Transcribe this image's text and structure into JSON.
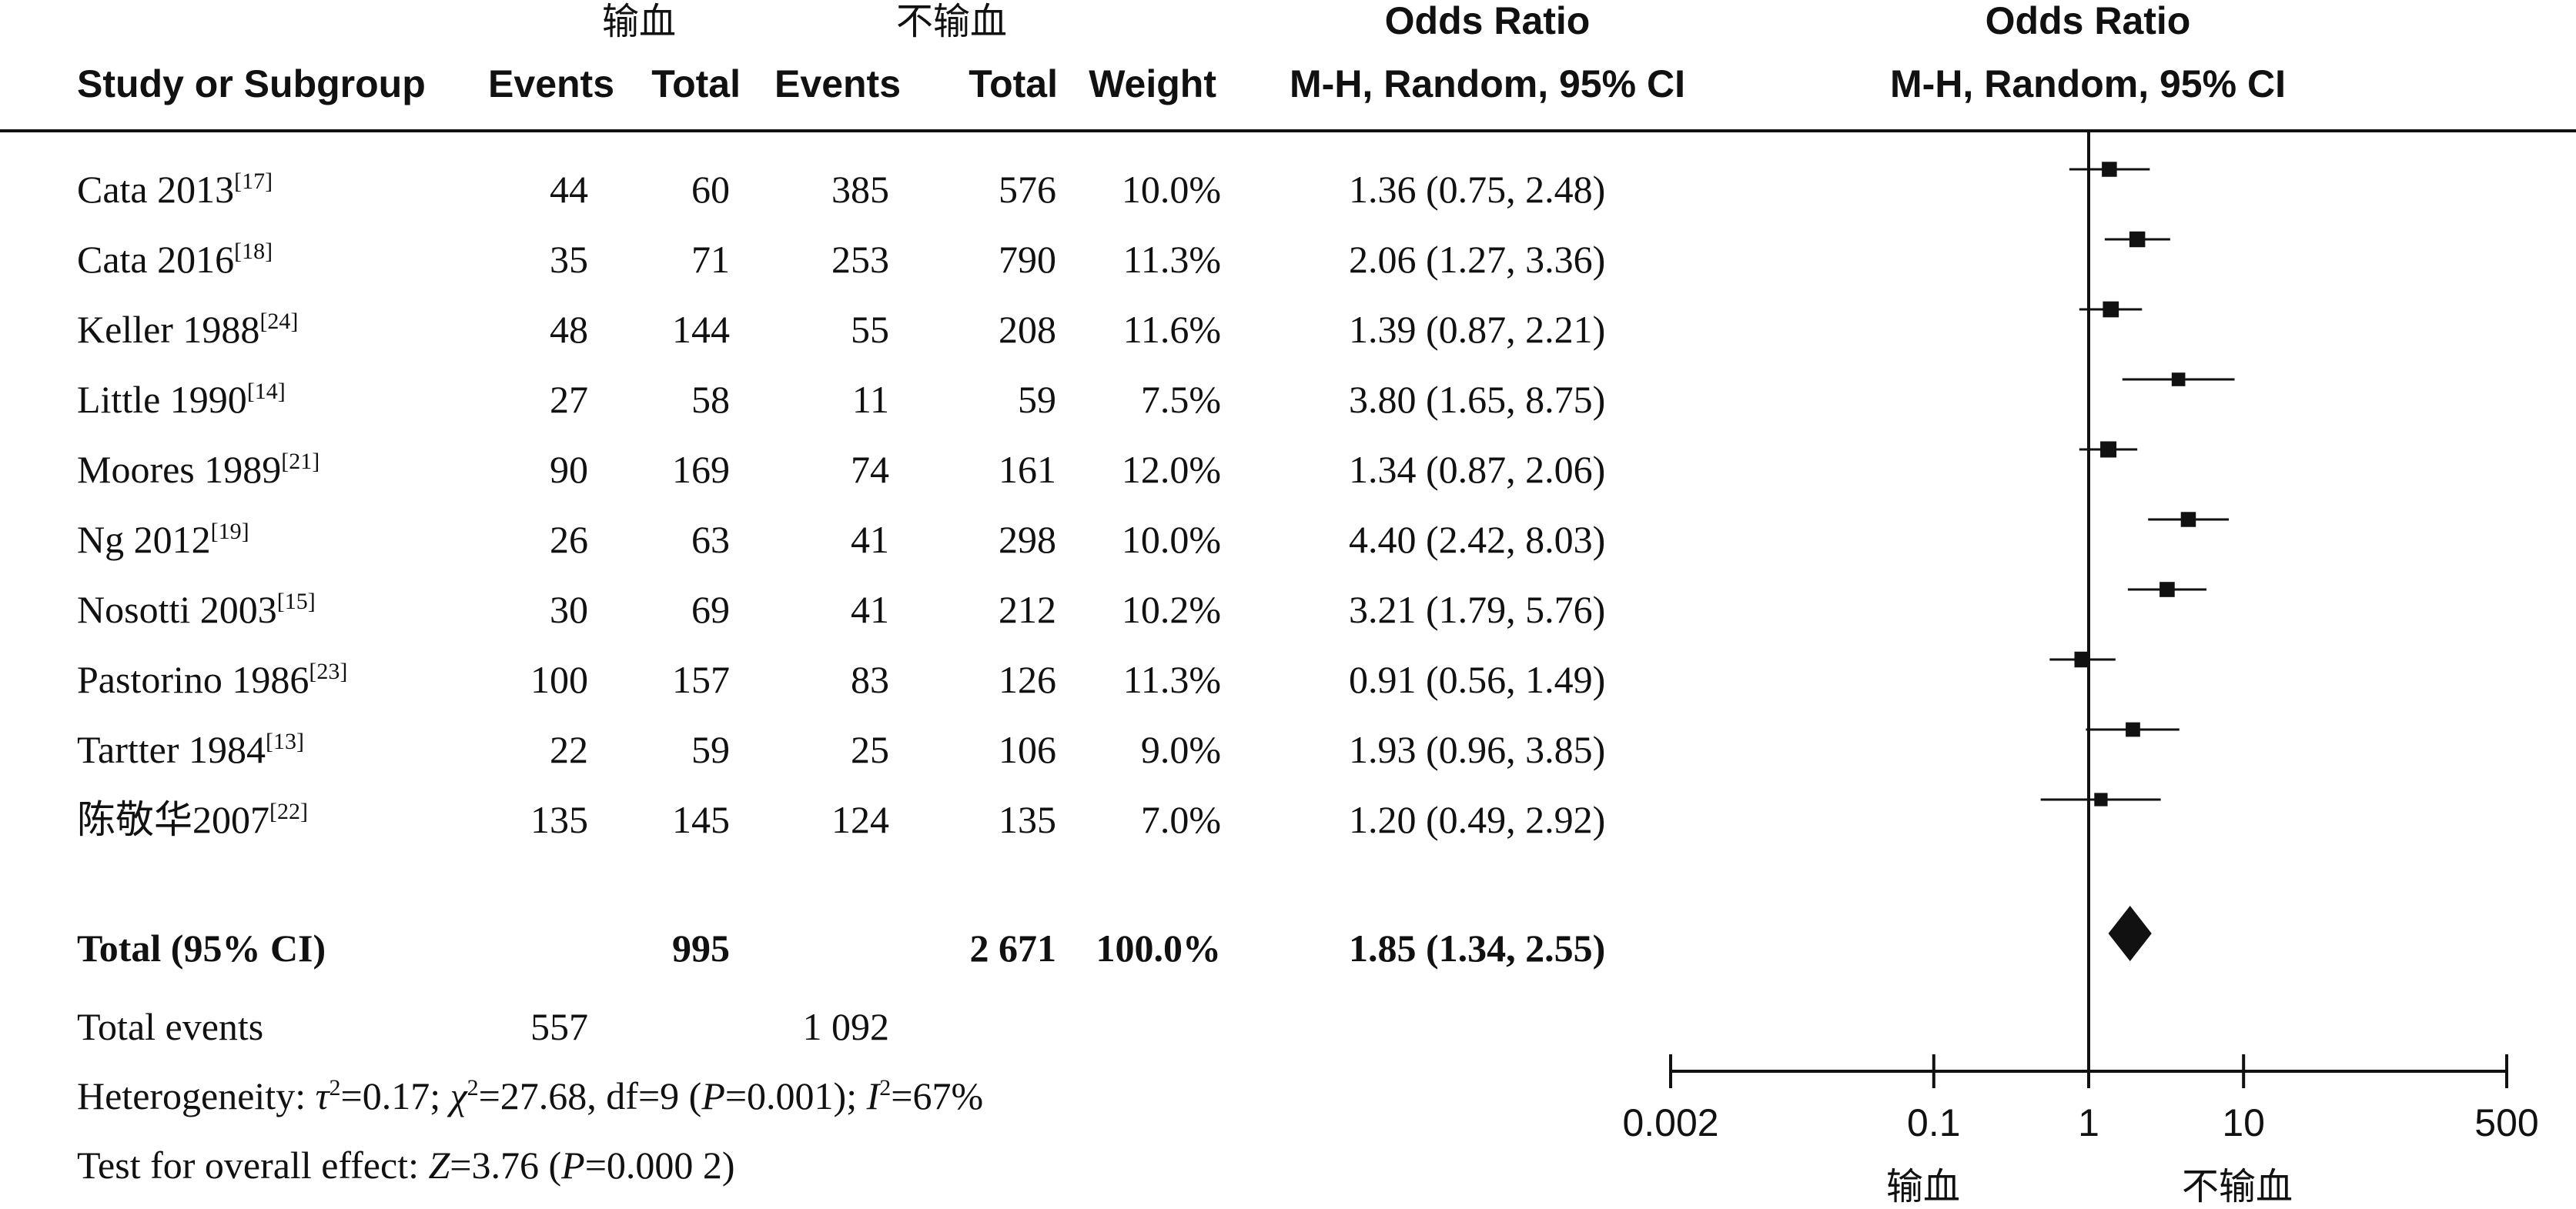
{
  "header": {
    "group1": "输血",
    "group2": "不输血",
    "study": "Study or Subgroup",
    "events1": "Events",
    "total1": "Total",
    "events2": "Events",
    "total2": "Total",
    "weight": "Weight",
    "or_title": "Odds Ratio",
    "or_method": "M-H, Random, 95% CI",
    "plot_title": "Odds Ratio",
    "plot_method": "M-H, Random, 95% CI"
  },
  "summary": {
    "total_label": "Total (95% CI)",
    "total1": "995",
    "total2": "2 671",
    "weight": "100.0%",
    "or_text": "1.85 (1.34, 2.55)",
    "events_label": "Total events",
    "events1": "557",
    "events2": "1 092"
  },
  "footer": {
    "het_prefix": "Heterogeneity: ",
    "tau": "τ",
    "sq": "2",
    "tau_val": "=0.17; ",
    "chi": "χ",
    "chi_val": "=27.68, df=9 (",
    "p": "P",
    "p_het": "=0.001); ",
    "i": "I",
    "i_val": "=67%",
    "overall_prefix": "Test for overall effect: ",
    "z": "Z",
    "z_val": "=3.76 (",
    "p_overall": "=0.000 2)"
  },
  "chart_data": {
    "type": "forest",
    "xscale": "log",
    "xlim": [
      0.002,
      500
    ],
    "ticks": [
      "0.002",
      "0.1",
      "1",
      "10",
      "500"
    ],
    "tick_values": [
      0.002,
      0.1,
      1,
      10,
      500
    ],
    "favours_left": "输血",
    "favours_right": "不输血",
    "studies": [
      {
        "name": "Cata 2013",
        "ref": "[17]",
        "events1": "44",
        "total1": "60",
        "events2": "385",
        "total2": "576",
        "weight": "10.0%",
        "or_text": "1.36 (0.75, 2.48)",
        "or": 1.36,
        "lo": 0.75,
        "hi": 2.48,
        "w": 10.0
      },
      {
        "name": "Cata 2016",
        "ref": "[18]",
        "events1": "35",
        "total1": "71",
        "events2": "253",
        "total2": "790",
        "weight": "11.3%",
        "or_text": "2.06 (1.27, 3.36)",
        "or": 2.06,
        "lo": 1.27,
        "hi": 3.36,
        "w": 11.3
      },
      {
        "name": "Keller 1988",
        "ref": "[24]",
        "events1": "48",
        "total1": "144",
        "events2": "55",
        "total2": "208",
        "weight": "11.6%",
        "or_text": "1.39 (0.87, 2.21)",
        "or": 1.39,
        "lo": 0.87,
        "hi": 2.21,
        "w": 11.6
      },
      {
        "name": "Little 1990",
        "ref": "[14]",
        "events1": "27",
        "total1": "58",
        "events2": "11",
        "total2": "59",
        "weight": "7.5%",
        "or_text": "3.80 (1.65, 8.75)",
        "or": 3.8,
        "lo": 1.65,
        "hi": 8.75,
        "w": 7.5
      },
      {
        "name": "Moores 1989",
        "ref": "[21]",
        "events1": "90",
        "total1": "169",
        "events2": "74",
        "total2": "161",
        "weight": "12.0%",
        "or_text": "1.34 (0.87, 2.06)",
        "or": 1.34,
        "lo": 0.87,
        "hi": 2.06,
        "w": 12.0
      },
      {
        "name": "Ng 2012",
        "ref": "[19]",
        "events1": "26",
        "total1": "63",
        "events2": "41",
        "total2": "298",
        "weight": "10.0%",
        "or_text": "4.40 (2.42, 8.03)",
        "or": 4.4,
        "lo": 2.42,
        "hi": 8.03,
        "w": 10.0
      },
      {
        "name": "Nosotti 2003",
        "ref": "[15]",
        "events1": "30",
        "total1": "69",
        "events2": "41",
        "total2": "212",
        "weight": "10.2%",
        "or_text": "3.21 (1.79, 5.76)",
        "or": 3.21,
        "lo": 1.79,
        "hi": 5.76,
        "w": 10.2
      },
      {
        "name": "Pastorino 1986",
        "ref": "[23]",
        "events1": "100",
        "total1": "157",
        "events2": "83",
        "total2": "126",
        "weight": "11.3%",
        "or_text": "0.91 (0.56, 1.49)",
        "or": 0.91,
        "lo": 0.56,
        "hi": 1.49,
        "w": 11.3
      },
      {
        "name": "Tartter 1984",
        "ref": "[13]",
        "events1": "22",
        "total1": "59",
        "events2": "25",
        "total2": "106",
        "weight": "9.0%",
        "or_text": "1.93 (0.96, 3.85)",
        "or": 1.93,
        "lo": 0.96,
        "hi": 3.85,
        "w": 9.0
      },
      {
        "name": "陈敬华2007",
        "ref": "[22]",
        "events1": "135",
        "total1": "145",
        "events2": "124",
        "total2": "135",
        "weight": "7.0%",
        "or_text": "1.20 (0.49, 2.92)",
        "or": 1.2,
        "lo": 0.49,
        "hi": 2.92,
        "w": 7.0
      }
    ],
    "pooled": {
      "or": 1.85,
      "lo": 1.34,
      "hi": 2.55
    }
  }
}
